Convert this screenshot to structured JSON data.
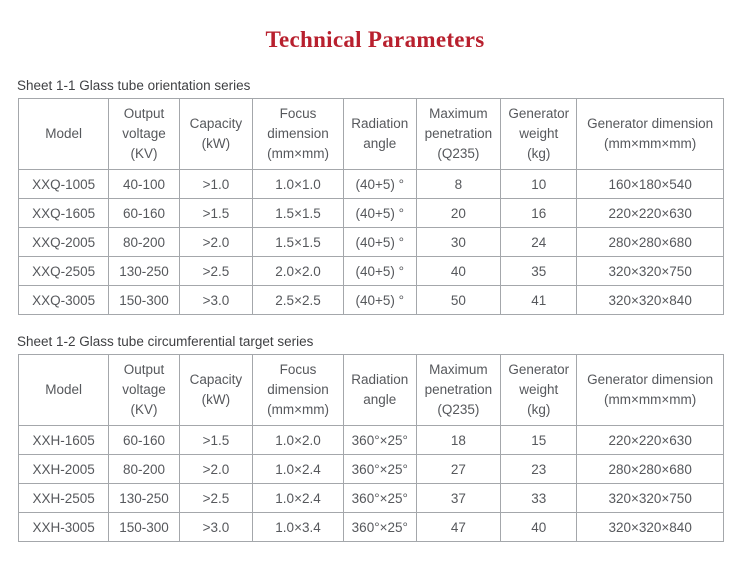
{
  "page": {
    "title": "Technical Parameters",
    "accent_color": "#b8202e"
  },
  "columns": {
    "keys": [
      "model",
      "output-voltage",
      "capacity",
      "focus-dimension",
      "radiation-angle",
      "maximum-penetration",
      "generator-weight",
      "generator-dimension"
    ]
  },
  "tables": [
    {
      "caption": "Sheet 1-1 Glass tube orientation series",
      "headers": [
        [
          "Model"
        ],
        [
          "Output",
          "voltage",
          "(KV)"
        ],
        [
          "Capacity",
          "(kW)"
        ],
        [
          "Focus",
          "dimension",
          "(mm×mm)"
        ],
        [
          "Radiation",
          "angle"
        ],
        [
          "Maximum",
          "penetration",
          "(Q235)"
        ],
        [
          "Generator",
          "weight",
          "(kg)"
        ],
        [
          "Generator dimension",
          "(mm×mm×mm)"
        ]
      ],
      "rows": [
        [
          "XXQ-1005",
          "40-100",
          ">1.0",
          "1.0×1.0",
          "(40+5) °",
          "8",
          "10",
          "160×180×540"
        ],
        [
          "XXQ-1605",
          "60-160",
          ">1.5",
          "1.5×1.5",
          "(40+5) °",
          "20",
          "16",
          "220×220×630"
        ],
        [
          "XXQ-2005",
          "80-200",
          ">2.0",
          "1.5×1.5",
          "(40+5) °",
          "30",
          "24",
          "280×280×680"
        ],
        [
          "XXQ-2505",
          "130-250",
          ">2.5",
          "2.0×2.0",
          "(40+5) °",
          "40",
          "35",
          "320×320×750"
        ],
        [
          "XXQ-3005",
          "150-300",
          ">3.0",
          "2.5×2.5",
          "(40+5) °",
          "50",
          "41",
          "320×320×840"
        ]
      ]
    },
    {
      "caption": "Sheet 1-2 Glass tube circumferential target series",
      "headers": [
        [
          "Model"
        ],
        [
          "Output",
          "voltage",
          "(KV)"
        ],
        [
          "Capacity",
          "(kW)"
        ],
        [
          "Focus",
          "dimension",
          "(mm×mm)"
        ],
        [
          "Radiation",
          "angle"
        ],
        [
          "Maximum",
          "penetration",
          "(Q235)"
        ],
        [
          "Generator",
          "weight",
          "(kg)"
        ],
        [
          "Generator dimension",
          "(mm×mm×mm)"
        ]
      ],
      "rows": [
        [
          "XXH-1605",
          "60-160",
          ">1.5",
          "1.0×2.0",
          "360°×25°",
          "18",
          "15",
          "220×220×630"
        ],
        [
          "XXH-2005",
          "80-200",
          ">2.0",
          "1.0×2.4",
          "360°×25°",
          "27",
          "23",
          "280×280×680"
        ],
        [
          "XXH-2505",
          "130-250",
          ">2.5",
          "1.0×2.4",
          "360°×25°",
          "37",
          "33",
          "320×320×750"
        ],
        [
          "XXH-3005",
          "150-300",
          ">3.0",
          "1.0×3.4",
          "360°×25°",
          "47",
          "40",
          "320×320×840"
        ]
      ]
    }
  ]
}
